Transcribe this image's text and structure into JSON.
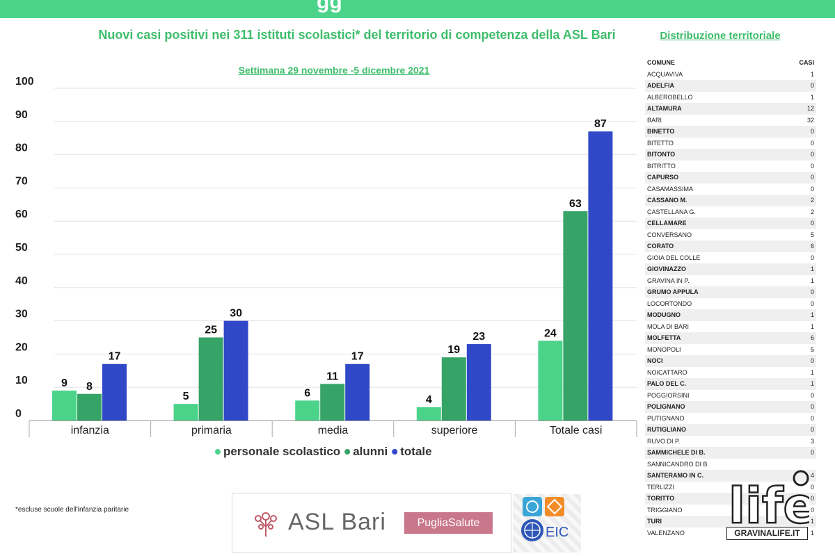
{
  "header": {
    "partial_title": "gg"
  },
  "title": "Nuovi casi positivi nei 311 istituti scolastici* del territorio di competenza della ASL Bari",
  "subtitle": "Settimana 29 novembre -5 dicembre 2021",
  "distribution_title": "Distribuzione territoriale",
  "footnote": "*escluse scuole dell'infanzia paritarie",
  "colors": {
    "personale": "#4cd38a",
    "alunni": "#35a466",
    "totale": "#3048c8",
    "accent": "#3dbd6a"
  },
  "chart_data": {
    "type": "bar",
    "categories": [
      "infanzia",
      "primaria",
      "media",
      "superiore",
      "Totale casi"
    ],
    "series": [
      {
        "name": "personale scolastico",
        "values": [
          9,
          5,
          6,
          4,
          24
        ]
      },
      {
        "name": "alunni",
        "values": [
          8,
          25,
          11,
          19,
          63
        ]
      },
      {
        "name": "totale",
        "values": [
          17,
          30,
          17,
          23,
          87
        ]
      }
    ],
    "ylim": [
      0,
      100
    ],
    "yticks": [
      0,
      10,
      20,
      30,
      40,
      50,
      60,
      70,
      80,
      90,
      100
    ],
    "grid": true,
    "legend": "bottom"
  },
  "table": {
    "headers": [
      "COMUNE",
      "CASI"
    ],
    "rows": [
      [
        "ACQUAVIVA",
        "1"
      ],
      [
        "ADELFIA",
        "0"
      ],
      [
        "ALBEROBELLO",
        "1"
      ],
      [
        "ALTAMURA",
        "12"
      ],
      [
        "BARI",
        "32"
      ],
      [
        "BINETTO",
        "0"
      ],
      [
        "BITETTO",
        "0"
      ],
      [
        "BITONTO",
        "0"
      ],
      [
        "BITRITTO",
        "0"
      ],
      [
        " CAPURSO",
        "0"
      ],
      [
        "CASAMASSIMA",
        "0"
      ],
      [
        "CASSANO M.",
        "2"
      ],
      [
        "CASTELLANA  G.",
        "2"
      ],
      [
        "CELLAMARE",
        "0"
      ],
      [
        "CONVERSANO",
        "5"
      ],
      [
        "CORATO",
        "6"
      ],
      [
        "GIOIA DEL COLLE",
        "0"
      ],
      [
        "GIOVINAZZO",
        "1"
      ],
      [
        "GRAVINA IN P.",
        "1"
      ],
      [
        "GRUMO APPULA",
        "0"
      ],
      [
        "LOCORTONDO",
        "0"
      ],
      [
        "MODUGNO",
        "1"
      ],
      [
        "MOLA DI BARI",
        "1"
      ],
      [
        "MOLFETTA",
        "6"
      ],
      [
        "MONOPOLI",
        "5"
      ],
      [
        "NOCI",
        "0"
      ],
      [
        "NOICATTARO",
        "1"
      ],
      [
        "PALO DEL C.",
        "1"
      ],
      [
        "POGGIORSINI",
        "0"
      ],
      [
        "POLIGNANO",
        "0"
      ],
      [
        "PUTIGNANO",
        "0"
      ],
      [
        "RUTIGLIANO",
        "0"
      ],
      [
        "RUVO DI P.",
        "3"
      ],
      [
        "SAMMICHELE DI B.",
        "0"
      ],
      [
        "SANNICANDRO DI B.",
        ""
      ],
      [
        "SANTERAMO IN C.",
        "4"
      ],
      [
        "TERLIZZI",
        "0"
      ],
      [
        "TORITTO",
        "0"
      ],
      [
        "TRIGGIANO",
        "0"
      ],
      [
        "TURI",
        "1"
      ],
      [
        "VALENZANO",
        "1"
      ]
    ]
  },
  "logos": {
    "asl": "ASL Bari",
    "puglia": "PugliaSalute",
    "eic": "EIC",
    "life": "life",
    "life_site": "GRAVINALIFE.IT"
  }
}
